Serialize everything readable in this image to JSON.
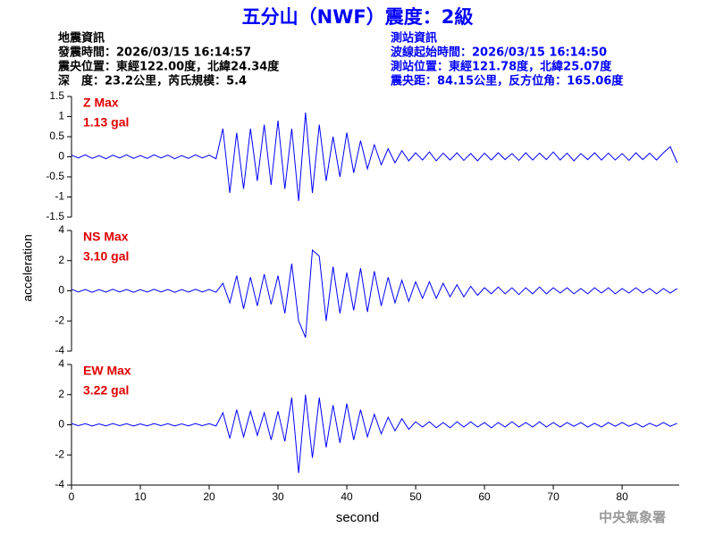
{
  "header": {
    "title": "五分山（NWF）震度：2級",
    "left": [
      "地震資訊",
      "發震時間：2026/03/15 16:14:57",
      "震央位置：東經122.00度，北緯24.34度",
      "深　度：23.2公里，芮氏規模：5.4"
    ],
    "right": [
      "測站資訊",
      "波線起始時間：2026/03/15 16:14:50",
      "測站位置：東經121.78度，北緯25.07度",
      "震央距：84.15公里，反方位角：165.06度"
    ]
  },
  "y_label": "acceleration",
  "x_label": "second",
  "footer": "中央氣象署",
  "chart_data": [
    {
      "type": "line",
      "annotations": [
        "Z Max",
        "1.13 gal"
      ],
      "color": "#0000ff",
      "x": [
        0,
        1,
        2,
        3,
        4,
        5,
        6,
        7,
        8,
        9,
        10,
        11,
        12,
        13,
        14,
        15,
        16,
        17,
        18,
        19,
        20,
        21,
        22,
        23,
        24,
        25,
        26,
        27,
        28,
        29,
        30,
        31,
        32,
        33,
        34,
        35,
        36,
        37,
        38,
        39,
        40,
        41,
        42,
        43,
        44,
        45,
        46,
        47,
        48,
        49,
        50,
        51,
        52,
        53,
        54,
        55,
        56,
        57,
        58,
        59,
        60,
        61,
        62,
        63,
        64,
        65,
        66,
        67,
        68,
        69,
        70,
        71,
        72,
        73,
        74,
        75,
        76,
        77,
        78,
        79,
        80,
        81,
        82,
        83,
        84,
        85,
        86,
        87,
        88
      ],
      "values": [
        0.04,
        -0.03,
        0.05,
        -0.04,
        0.03,
        -0.05,
        0.04,
        -0.03,
        0.05,
        -0.04,
        0.03,
        -0.04,
        0.05,
        -0.03,
        0.04,
        -0.05,
        0.03,
        -0.04,
        0.05,
        -0.03,
        0.04,
        -0.05,
        0.7,
        -0.9,
        0.6,
        -0.8,
        0.7,
        -0.6,
        0.8,
        -0.7,
        0.9,
        -0.8,
        0.7,
        -1.1,
        1.1,
        -0.9,
        0.8,
        -0.6,
        0.5,
        -0.5,
        0.6,
        -0.4,
        0.4,
        -0.3,
        0.3,
        -0.2,
        0.2,
        -0.15,
        0.15,
        -0.1,
        0.1,
        -0.08,
        0.12,
        -0.1,
        0.09,
        -0.08,
        0.1,
        -0.09,
        0.08,
        -0.1,
        0.09,
        -0.08,
        0.1,
        -0.07,
        0.08,
        -0.09,
        0.1,
        -0.08,
        0.09,
        -0.07,
        0.12,
        -0.08,
        0.09,
        -0.1,
        0.08,
        -0.07,
        0.1,
        -0.08,
        0.09,
        -0.08,
        0.08,
        -0.09,
        0.1,
        -0.07,
        0.09,
        -0.08,
        0.1,
        0.25,
        -0.15
      ],
      "xlim": [
        0,
        88.3
      ],
      "ylim": [
        -1.5,
        1.5
      ],
      "yticks": [
        1.5,
        1,
        0.5,
        0,
        -0.5,
        -1,
        -1.5
      ]
    },
    {
      "type": "line",
      "annotations": [
        "NS Max",
        "3.10 gal"
      ],
      "color": "#0000ff",
      "x": [
        0,
        1,
        2,
        3,
        4,
        5,
        6,
        7,
        8,
        9,
        10,
        11,
        12,
        13,
        14,
        15,
        16,
        17,
        18,
        19,
        20,
        21,
        22,
        23,
        24,
        25,
        26,
        27,
        28,
        29,
        30,
        31,
        32,
        33,
        34,
        35,
        36,
        37,
        38,
        39,
        40,
        41,
        42,
        43,
        44,
        45,
        46,
        47,
        48,
        49,
        50,
        51,
        52,
        53,
        54,
        55,
        56,
        57,
        58,
        59,
        60,
        61,
        62,
        63,
        64,
        65,
        66,
        67,
        68,
        69,
        70,
        71,
        72,
        73,
        74,
        75,
        76,
        77,
        78,
        79,
        80,
        81,
        82,
        83,
        84,
        85,
        86,
        87,
        88
      ],
      "values": [
        0.1,
        -0.08,
        0.09,
        -0.1,
        0.08,
        -0.09,
        0.1,
        -0.08,
        0.09,
        -0.1,
        0.08,
        -0.09,
        0.1,
        -0.08,
        0.09,
        -0.1,
        0.08,
        -0.09,
        0.1,
        -0.08,
        0.09,
        -0.1,
        0.5,
        -0.8,
        1.0,
        -1.2,
        0.9,
        -1.0,
        1.1,
        -0.9,
        1.0,
        -1.5,
        1.8,
        -2.0,
        -3.1,
        2.7,
        2.3,
        -2.0,
        1.6,
        -1.5,
        1.2,
        -1.3,
        1.5,
        -1.4,
        1.3,
        -1.0,
        0.9,
        -0.8,
        0.7,
        -0.7,
        0.6,
        -0.5,
        0.6,
        -0.5,
        0.5,
        -0.4,
        0.4,
        -0.4,
        0.3,
        -0.3,
        0.2,
        -0.2,
        0.25,
        -0.2,
        0.2,
        -0.25,
        0.2,
        -0.2,
        0.25,
        -0.2,
        0.2,
        -0.15,
        0.2,
        -0.2,
        0.15,
        -0.2,
        0.2,
        -0.15,
        0.2,
        -0.2,
        0.15,
        -0.15,
        0.2,
        -0.15,
        0.15,
        -0.2,
        0.15,
        -0.15,
        0.15
      ],
      "xlim": [
        0,
        88.3
      ],
      "ylim": [
        -4,
        4
      ],
      "yticks": [
        4,
        2,
        0,
        -2,
        -4
      ]
    },
    {
      "type": "line",
      "annotations": [
        "EW Max",
        "3.22 gal"
      ],
      "color": "#0000ff",
      "x": [
        0,
        1,
        2,
        3,
        4,
        5,
        6,
        7,
        8,
        9,
        10,
        11,
        12,
        13,
        14,
        15,
        16,
        17,
        18,
        19,
        20,
        21,
        22,
        23,
        24,
        25,
        26,
        27,
        28,
        29,
        30,
        31,
        32,
        33,
        34,
        35,
        36,
        37,
        38,
        39,
        40,
        41,
        42,
        43,
        44,
        45,
        46,
        47,
        48,
        49,
        50,
        51,
        52,
        53,
        54,
        55,
        56,
        57,
        58,
        59,
        60,
        61,
        62,
        63,
        64,
        65,
        66,
        67,
        68,
        69,
        70,
        71,
        72,
        73,
        74,
        75,
        76,
        77,
        78,
        79,
        80,
        81,
        82,
        83,
        84,
        85,
        86,
        87,
        88
      ],
      "values": [
        0.08,
        -0.06,
        0.07,
        -0.08,
        0.06,
        -0.07,
        0.08,
        -0.06,
        0.07,
        -0.08,
        0.06,
        -0.07,
        0.08,
        -0.06,
        0.07,
        -0.08,
        0.06,
        -0.07,
        0.08,
        -0.06,
        0.07,
        -0.08,
        0.8,
        -0.9,
        1.0,
        -0.8,
        0.9,
        -0.7,
        0.8,
        -1.0,
        0.9,
        -1.1,
        1.8,
        -3.2,
        2.0,
        -2.2,
        1.8,
        -1.5,
        1.3,
        -1.2,
        1.4,
        -1.0,
        1.0,
        -0.8,
        0.7,
        -0.6,
        0.5,
        -0.4,
        0.4,
        -0.3,
        0.2,
        -0.15,
        0.2,
        -0.2,
        0.15,
        -0.2,
        0.2,
        -0.15,
        0.2,
        -0.15,
        0.15,
        -0.2,
        0.15,
        -0.15,
        0.2,
        -0.15,
        0.15,
        -0.15,
        0.2,
        -0.15,
        0.15,
        -0.15,
        0.15,
        -0.1,
        0.15,
        -0.15,
        0.1,
        -0.15,
        0.15,
        -0.1,
        0.15,
        -0.1,
        0.1,
        -0.15,
        0.1,
        -0.1,
        0.15,
        -0.1,
        0.1
      ],
      "xlim": [
        0,
        88.3
      ],
      "ylim": [
        -4,
        4
      ],
      "yticks": [
        4,
        2,
        0,
        -2,
        -4
      ],
      "xticks": [
        0,
        10,
        20,
        30,
        40,
        50,
        60,
        70,
        80
      ]
    }
  ]
}
